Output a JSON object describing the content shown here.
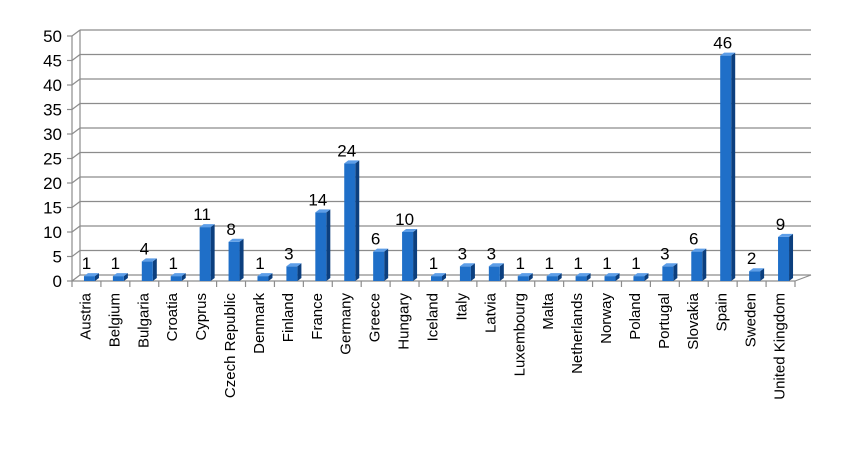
{
  "chart_data": {
    "type": "bar",
    "categories": [
      "Austria",
      "Belgium",
      "Bulgaria",
      "Croatia",
      "Cyprus",
      "Czech Republic",
      "Denmark",
      "Finland",
      "France",
      "Germany",
      "Greece",
      "Hungary",
      "Iceland",
      "Italy",
      "Latvia",
      "Luxembourg",
      "Malta",
      "Netherlands",
      "Norway",
      "Poland",
      "Portugal",
      "Slovakia",
      "Spain",
      "Sweden",
      "United Kingdom"
    ],
    "values": [
      1,
      1,
      4,
      1,
      11,
      8,
      1,
      3,
      14,
      24,
      6,
      10,
      1,
      3,
      3,
      1,
      1,
      1,
      1,
      1,
      3,
      6,
      46,
      2,
      9
    ],
    "data_labels": [
      "1",
      "1",
      "4",
      "1",
      "11",
      "8",
      "1",
      "3",
      "14",
      "24",
      "6",
      "10",
      "1",
      "3",
      "3",
      "1",
      "1",
      "1",
      "1",
      "1",
      "3",
      "6",
      "46",
      "2",
      "9"
    ],
    "y_ticks": [
      "0",
      "5",
      "10",
      "15",
      "20",
      "25",
      "30",
      "35",
      "40",
      "45",
      "50"
    ],
    "ylim": [
      0,
      50
    ],
    "grid": true,
    "legend": "none",
    "colors": {
      "bar_front": "#1f6fc8",
      "bar_side": "#0c3f7e",
      "bar_top": "#5d9ee8",
      "grid": "#8c8c8c",
      "wall": "#ffffff"
    }
  }
}
